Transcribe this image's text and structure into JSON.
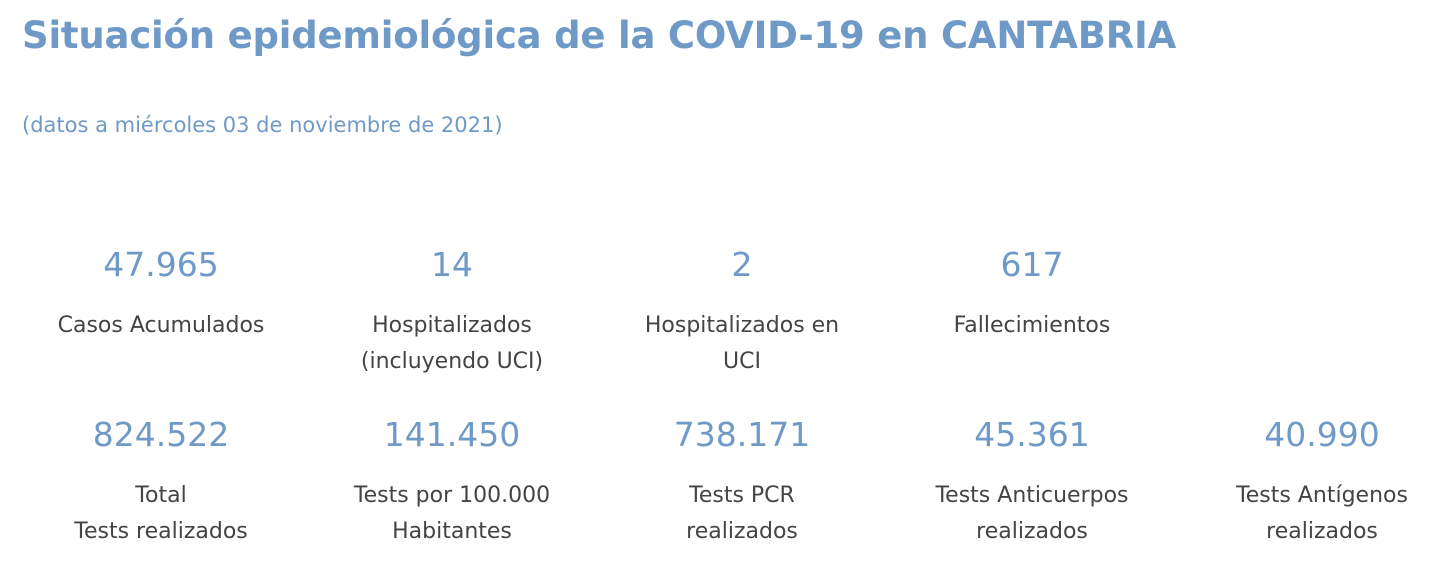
{
  "header": {
    "title": "Situación epidemiológica de la COVID-19 en CANTABRIA",
    "date_note": "(datos a miércoles 03 de noviembre de 2021)"
  },
  "stats_row1": [
    {
      "value": "47.965",
      "label": [
        "Casos Acumulados"
      ]
    },
    {
      "value": "14",
      "label": [
        "Hospitalizados",
        "(incluyendo UCI)"
      ]
    },
    {
      "value": "2",
      "label": [
        "Hospitalizados en",
        "UCI"
      ]
    },
    {
      "value": "617",
      "label": [
        "Fallecimientos"
      ]
    }
  ],
  "stats_row2": [
    {
      "value": "824.522",
      "label": [
        "Total",
        "Tests realizados"
      ]
    },
    {
      "value": "141.450",
      "label": [
        "Tests por 100.000",
        "Habitantes"
      ]
    },
    {
      "value": "738.171",
      "label": [
        "Tests PCR",
        "realizados"
      ]
    },
    {
      "value": "45.361",
      "label": [
        "Tests Anticuerpos",
        "realizados"
      ]
    },
    {
      "value": "40.990",
      "label": [
        "Tests Antígenos",
        "realizados"
      ]
    }
  ]
}
